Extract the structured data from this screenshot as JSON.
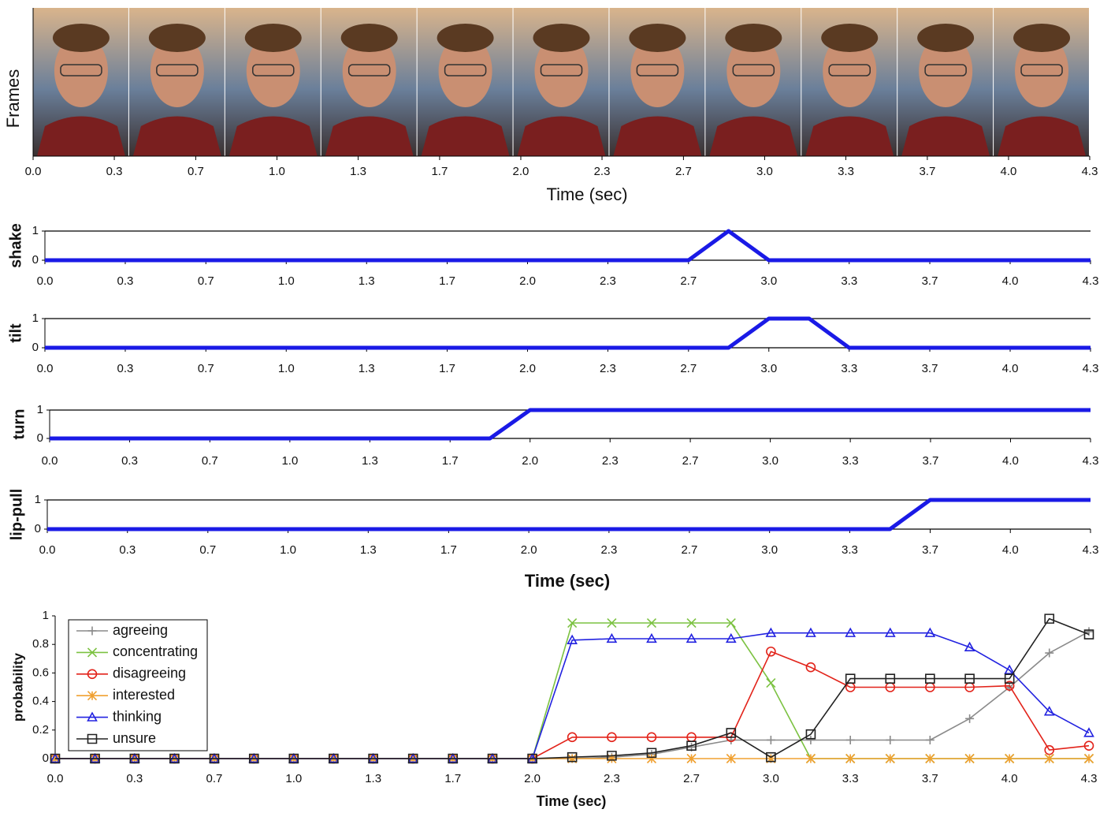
{
  "chart_data": [
    {
      "type": "image-strip",
      "ylabel": "Frames",
      "xlabel": "Time (sec)",
      "frames": 11,
      "xlim": [
        0,
        4.333
      ],
      "xticks": [
        {
          "value": 0,
          "label": "0.0"
        },
        {
          "value": 0.333,
          "label": "0.3"
        },
        {
          "value": 0.667,
          "label": "0.7"
        },
        {
          "value": 1,
          "label": "1.0"
        },
        {
          "value": 1.333,
          "label": "1.3"
        },
        {
          "value": 1.667,
          "label": "1.7"
        },
        {
          "value": 2,
          "label": "2.0"
        },
        {
          "value": 2.333,
          "label": "2.3"
        },
        {
          "value": 2.667,
          "label": "2.7"
        },
        {
          "value": 3,
          "label": "3.0"
        },
        {
          "value": 3.333,
          "label": "3.3"
        },
        {
          "value": 3.667,
          "label": "3.7"
        },
        {
          "value": 4,
          "label": "4.0"
        },
        {
          "value": 4.333,
          "label": "4.3"
        }
      ]
    },
    {
      "type": "line",
      "ylabel": "shake",
      "color": "#1a1ae6",
      "grid": true,
      "x": [
        0,
        2.667,
        2.833,
        3,
        4.333
      ],
      "values": [
        0,
        0,
        1,
        0,
        0
      ],
      "xlim": [
        0,
        4.333
      ],
      "ylim": [
        0,
        1
      ],
      "yticks": [
        0,
        1
      ],
      "xticks": [
        {
          "value": 0,
          "label": "0.0"
        },
        {
          "value": 0.333,
          "label": "0.3"
        },
        {
          "value": 0.667,
          "label": "0.7"
        },
        {
          "value": 1,
          "label": "1.0"
        },
        {
          "value": 1.333,
          "label": "1.3"
        },
        {
          "value": 1.667,
          "label": "1.7"
        },
        {
          "value": 2,
          "label": "2.0"
        },
        {
          "value": 2.333,
          "label": "2.3"
        },
        {
          "value": 2.667,
          "label": "2.7"
        },
        {
          "value": 3,
          "label": "3.0"
        },
        {
          "value": 3.333,
          "label": "3.3"
        },
        {
          "value": 3.667,
          "label": "3.7"
        },
        {
          "value": 4,
          "label": "4.0"
        },
        {
          "value": 4.333,
          "label": "4.3"
        }
      ]
    },
    {
      "type": "line",
      "ylabel": "tilt",
      "color": "#1a1ae6",
      "grid": true,
      "x": [
        0,
        2.833,
        3,
        3.167,
        3.333,
        4.333
      ],
      "values": [
        0,
        0,
        1,
        1,
        0,
        0
      ],
      "xlim": [
        0,
        4.333
      ],
      "ylim": [
        0,
        1
      ],
      "yticks": [
        0,
        1
      ],
      "xticks": [
        {
          "value": 0,
          "label": "0.0"
        },
        {
          "value": 0.333,
          "label": "0.3"
        },
        {
          "value": 0.667,
          "label": "0.7"
        },
        {
          "value": 1,
          "label": "1.0"
        },
        {
          "value": 1.333,
          "label": "1.3"
        },
        {
          "value": 1.667,
          "label": "1.7"
        },
        {
          "value": 2,
          "label": "2.0"
        },
        {
          "value": 2.333,
          "label": "2.3"
        },
        {
          "value": 2.667,
          "label": "2.7"
        },
        {
          "value": 3,
          "label": "3.0"
        },
        {
          "value": 3.333,
          "label": "3.3"
        },
        {
          "value": 3.667,
          "label": "3.7"
        },
        {
          "value": 4,
          "label": "4.0"
        },
        {
          "value": 4.333,
          "label": "4.3"
        }
      ]
    },
    {
      "type": "line",
      "ylabel": "turn",
      "color": "#1a1ae6",
      "grid": true,
      "x": [
        0,
        1.833,
        2,
        4.333
      ],
      "values": [
        0,
        0,
        1,
        1
      ],
      "xlim": [
        0,
        4.333
      ],
      "ylim": [
        0,
        1
      ],
      "yticks": [
        0,
        1
      ],
      "xticks": [
        {
          "value": 0,
          "label": "0.0"
        },
        {
          "value": 0.333,
          "label": "0.3"
        },
        {
          "value": 0.667,
          "label": "0.7"
        },
        {
          "value": 1,
          "label": "1.0"
        },
        {
          "value": 1.333,
          "label": "1.3"
        },
        {
          "value": 1.667,
          "label": "1.7"
        },
        {
          "value": 2,
          "label": "2.0"
        },
        {
          "value": 2.333,
          "label": "2.3"
        },
        {
          "value": 2.667,
          "label": "2.7"
        },
        {
          "value": 3,
          "label": "3.0"
        },
        {
          "value": 3.333,
          "label": "3.3"
        },
        {
          "value": 3.667,
          "label": "3.7"
        },
        {
          "value": 4,
          "label": "4.0"
        },
        {
          "value": 4.333,
          "label": "4.3"
        }
      ]
    },
    {
      "type": "line",
      "ylabel": "lip-pull",
      "xlabel": "Time (sec)",
      "color": "#1a1ae6",
      "grid": true,
      "x": [
        0,
        3.5,
        3.667,
        4.333
      ],
      "values": [
        0,
        0,
        1,
        1
      ],
      "xlim": [
        0,
        4.333
      ],
      "ylim": [
        0,
        1
      ],
      "yticks": [
        0,
        1
      ],
      "xticks": [
        {
          "value": 0,
          "label": "0.0"
        },
        {
          "value": 0.333,
          "label": "0.3"
        },
        {
          "value": 0.667,
          "label": "0.7"
        },
        {
          "value": 1,
          "label": "1.0"
        },
        {
          "value": 1.333,
          "label": "1.3"
        },
        {
          "value": 1.667,
          "label": "1.7"
        },
        {
          "value": 2,
          "label": "2.0"
        },
        {
          "value": 2.333,
          "label": "2.3"
        },
        {
          "value": 2.667,
          "label": "2.7"
        },
        {
          "value": 3,
          "label": "3.0"
        },
        {
          "value": 3.333,
          "label": "3.3"
        },
        {
          "value": 3.667,
          "label": "3.7"
        },
        {
          "value": 4,
          "label": "4.0"
        },
        {
          "value": 4.333,
          "label": "4.3"
        }
      ]
    },
    {
      "type": "line",
      "ylabel": "probability",
      "xlabel": "Time (sec)",
      "legend": "upper-left",
      "grid": false,
      "x": [
        0,
        0.167,
        0.333,
        0.5,
        0.667,
        0.833,
        1,
        1.167,
        1.333,
        1.5,
        1.667,
        1.833,
        2,
        2.167,
        2.333,
        2.5,
        2.667,
        2.833,
        3,
        3.167,
        3.333,
        3.5,
        3.667,
        3.833,
        4,
        4.167,
        4.333
      ],
      "xlim": [
        0,
        4.333
      ],
      "ylim": [
        0,
        1
      ],
      "yticks": [
        0,
        0.2,
        0.4,
        0.6,
        0.8,
        1
      ],
      "xticks": [
        {
          "value": 0,
          "label": "0.0"
        },
        {
          "value": 0.333,
          "label": "0.3"
        },
        {
          "value": 0.667,
          "label": "0.7"
        },
        {
          "value": 1,
          "label": "1.0"
        },
        {
          "value": 1.333,
          "label": "1.3"
        },
        {
          "value": 1.667,
          "label": "1.7"
        },
        {
          "value": 2,
          "label": "2.0"
        },
        {
          "value": 2.333,
          "label": "2.3"
        },
        {
          "value": 2.667,
          "label": "2.7"
        },
        {
          "value": 3,
          "label": "3.0"
        },
        {
          "value": 3.333,
          "label": "3.3"
        },
        {
          "value": 3.667,
          "label": "3.7"
        },
        {
          "value": 4,
          "label": "4.0"
        },
        {
          "value": 4.333,
          "label": "4.3"
        }
      ],
      "series": [
        {
          "name": "agreeing",
          "color": "#8a8a8a",
          "marker": "plus",
          "values": [
            0,
            0,
            0,
            0,
            0,
            0,
            0,
            0,
            0,
            0,
            0,
            0,
            0,
            0,
            0.01,
            0.03,
            0.08,
            0.13,
            0.13,
            0.13,
            0.13,
            0.13,
            0.13,
            0.28,
            0.5,
            0.74,
            0.89
          ]
        },
        {
          "name": "concentrating",
          "color": "#7cc242",
          "marker": "x",
          "values": [
            0,
            0,
            0,
            0,
            0,
            0,
            0,
            0,
            0,
            0,
            0,
            0,
            0,
            0.95,
            0.95,
            0.95,
            0.95,
            0.95,
            0.53,
            0,
            0,
            0,
            0,
            0,
            0,
            0,
            0
          ]
        },
        {
          "name": "disagreeing",
          "color": "#e2231a",
          "marker": "circle",
          "values": [
            0,
            0,
            0,
            0,
            0,
            0,
            0,
            0,
            0,
            0,
            0,
            0,
            0,
            0.15,
            0.15,
            0.15,
            0.15,
            0.15,
            0.75,
            0.64,
            0.5,
            0.5,
            0.5,
            0.5,
            0.51,
            0.06,
            0.09
          ]
        },
        {
          "name": "interested",
          "color": "#f0a030",
          "marker": "star",
          "values": [
            0,
            0,
            0,
            0,
            0,
            0,
            0,
            0,
            0,
            0,
            0,
            0,
            0,
            0,
            0,
            0,
            0,
            0,
            0,
            0,
            0,
            0,
            0,
            0,
            0,
            0,
            0
          ]
        },
        {
          "name": "thinking",
          "color": "#2222e0",
          "marker": "triangle",
          "values": [
            0,
            0,
            0,
            0,
            0,
            0,
            0,
            0,
            0,
            0,
            0,
            0,
            0,
            0.83,
            0.84,
            0.84,
            0.84,
            0.84,
            0.88,
            0.88,
            0.88,
            0.88,
            0.88,
            0.78,
            0.62,
            0.33,
            0.18
          ]
        },
        {
          "name": "unsure",
          "color": "#222222",
          "marker": "square",
          "values": [
            0,
            0,
            0,
            0,
            0,
            0,
            0,
            0,
            0,
            0,
            0,
            0,
            0,
            0.01,
            0.02,
            0.04,
            0.09,
            0.18,
            0.01,
            0.17,
            0.56,
            0.56,
            0.56,
            0.56,
            0.56,
            0.98,
            0.87
          ]
        }
      ]
    }
  ]
}
